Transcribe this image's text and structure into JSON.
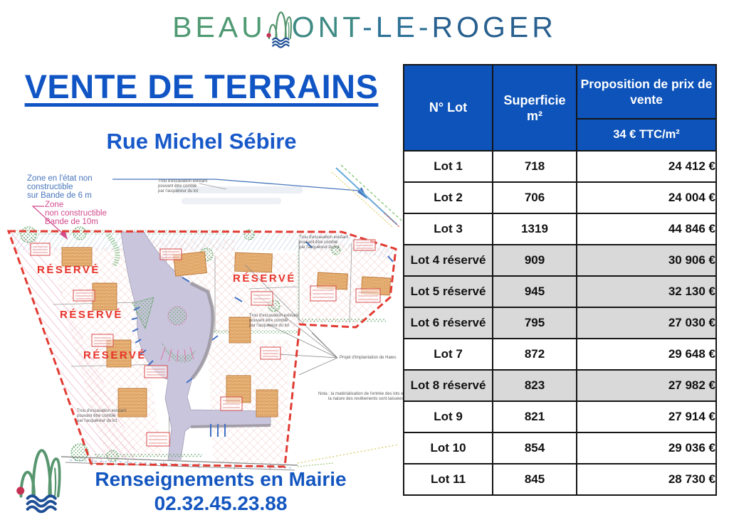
{
  "wordmark": {
    "seg1": "BEAU",
    "seg2": "ONT",
    "seg3": "-LE-",
    "seg4": "ROGER"
  },
  "title": "VENTE DE TERRAINS",
  "subtitle": "Rue Michel Sébire",
  "map": {
    "reserved_label": "RÉSERVÉ",
    "zone6m": [
      "Zone en l'état non",
      "constructible",
      "sur Bande de 6 m"
    ],
    "zone10m": [
      "Zone",
      "non constructible",
      "Bande de 10m"
    ],
    "trou": [
      "Trou d'escavation existant",
      "pouvant être comblé",
      "par l'acquéreur du lot"
    ],
    "projet": "Projet d'implantation de Haies",
    "nota1": "Nota : la matérialisation de l'entrée des lots et",
    "nota2": "la nature des revêtements sont laissées au cho"
  },
  "contact": {
    "line1": "Renseignements en Mairie",
    "phone": "02.32.45.23.88"
  },
  "table": {
    "header": {
      "col_lot": "N° Lot",
      "col_sup_1": "Superficie",
      "col_sup_2": "m²",
      "col_prop": "Proposition de prix de vente",
      "col_rate": "34 € TTC/m²"
    },
    "rows": [
      {
        "lot": "Lot 1",
        "sup": "718",
        "prix": "24 412 €",
        "reserved": false
      },
      {
        "lot": "Lot 2",
        "sup": "706",
        "prix": "24 004 €",
        "reserved": false
      },
      {
        "lot": "Lot 3",
        "sup": "1319",
        "prix": "44 846 €",
        "reserved": false
      },
      {
        "lot": "Lot 4 réservé",
        "sup": "909",
        "prix": "30 906 €",
        "reserved": true
      },
      {
        "lot": "Lot 5 réservé",
        "sup": "945",
        "prix": "32 130 €",
        "reserved": true
      },
      {
        "lot": "Lot 6 réservé",
        "sup": "795",
        "prix": "27 030 €",
        "reserved": true
      },
      {
        "lot": "Lot 7",
        "sup": "872",
        "prix": "29 648 €",
        "reserved": false
      },
      {
        "lot": "Lot 8 réservé",
        "sup": "823",
        "prix": "27 982 €",
        "reserved": true
      },
      {
        "lot": "Lot 9",
        "sup": "821",
        "prix": "27 914 €",
        "reserved": false
      },
      {
        "lot": "Lot 10",
        "sup": "854",
        "prix": "29 036 €",
        "reserved": false
      },
      {
        "lot": "Lot 11",
        "sup": "845",
        "prix": "28 730 €",
        "reserved": false
      }
    ]
  },
  "colors": {
    "accent_blue": "#1155c5",
    "header_blue": "#0d53b9",
    "reserved_red": "#e73329",
    "row_gray": "#d9d9d9",
    "logo_green": "#57966f",
    "logo_navy": "#1e4f96"
  }
}
